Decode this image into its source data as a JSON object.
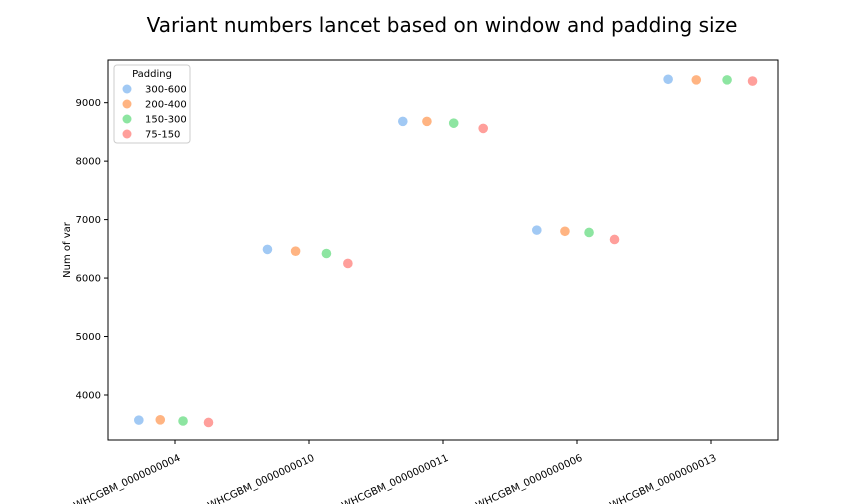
{
  "chart_data": {
    "type": "scatter",
    "title": "Variant numbers lancet based on window and padding size",
    "xlabel": "",
    "ylabel": "Num of var",
    "categories": [
      "WHCGBM_0000000004",
      "WHCGBM_0000000010",
      "WHCGBM_0000000011",
      "WHCGBM_0000000006",
      "WHCGBM_0000000013"
    ],
    "ylim": [
      3230,
      9730
    ],
    "yticks": [
      4000,
      5000,
      6000,
      7000,
      8000,
      9000
    ],
    "grid": false,
    "legend": {
      "title": "Padding",
      "placement": "top-left"
    },
    "series": [
      {
        "name": "300-600",
        "color": "#a1c9f4",
        "values": [
          3570,
          6490,
          8680,
          6820,
          9400
        ],
        "x_offsets": [
          -0.27,
          -0.31,
          -0.3,
          -0.3,
          -0.32
        ]
      },
      {
        "name": "200-400",
        "color": "#ffb482",
        "values": [
          3575,
          6460,
          8680,
          6800,
          9390
        ],
        "x_offsets": [
          -0.11,
          -0.1,
          -0.12,
          -0.09,
          -0.11
        ]
      },
      {
        "name": "150-300",
        "color": "#8de5a1",
        "values": [
          3555,
          6420,
          8650,
          6780,
          9390
        ],
        "x_offsets": [
          0.06,
          0.13,
          0.08,
          0.09,
          0.12
        ]
      },
      {
        "name": "75-150",
        "color": "#ff9f9b",
        "values": [
          3530,
          6250,
          8560,
          6660,
          9370
        ],
        "x_offsets": [
          0.25,
          0.29,
          0.3,
          0.28,
          0.31
        ]
      }
    ]
  }
}
